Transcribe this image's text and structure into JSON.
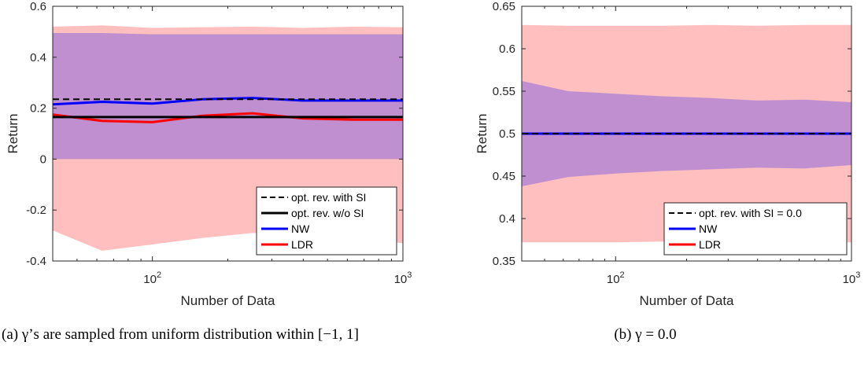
{
  "colors": {
    "outer_band": "#ffbfbf",
    "inner_band": "#bf8fcf",
    "nw": "#0000ff",
    "ldr": "#ff0000",
    "ref": "#000000",
    "axis": "#262626"
  },
  "chart_data": [
    {
      "type": "line",
      "xscale": "log",
      "xlim": [
        40,
        1000
      ],
      "ylim": [
        -0.4,
        0.6
      ],
      "yticks": [
        "-0.4",
        "-0.2",
        "0",
        "0.2",
        "0.4",
        "0.6"
      ],
      "ytick_values": [
        -0.4,
        -0.2,
        0,
        0.2,
        0.4,
        0.6
      ],
      "xtick_values": [
        100,
        1000
      ],
      "xtick_base": "10",
      "xtick_exponents": [
        "2",
        "3"
      ],
      "xlabel": "Number of Data",
      "ylabel": "Return",
      "grid": false,
      "legend_position": "bottom-right",
      "x": [
        40,
        63,
        100,
        158,
        251,
        398,
        631,
        1000
      ],
      "outer_band": {
        "upper": [
          0.52,
          0.525,
          0.515,
          0.518,
          0.52,
          0.515,
          0.52,
          0.518
        ],
        "lower": [
          -0.28,
          -0.36,
          -0.335,
          -0.31,
          -0.29,
          -0.3,
          -0.31,
          -0.33
        ]
      },
      "inner_band": {
        "upper": [
          0.495,
          0.495,
          0.49,
          0.49,
          0.49,
          0.49,
          0.49,
          0.49
        ],
        "lower": [
          0,
          0,
          0,
          0,
          0,
          0,
          0,
          0
        ]
      },
      "series": [
        {
          "name": "opt. rev. with SI",
          "style": "dashed",
          "color": "#000000",
          "values": [
            0.235,
            0.235,
            0.235,
            0.235,
            0.235,
            0.235,
            0.235,
            0.235
          ]
        },
        {
          "name": "opt. rev. w/o SI",
          "style": "solid",
          "color": "#000000",
          "values": [
            0.165,
            0.165,
            0.165,
            0.165,
            0.165,
            0.165,
            0.165,
            0.165
          ]
        },
        {
          "name": "NW",
          "style": "solid",
          "color": "#0000ff",
          "values": [
            0.215,
            0.225,
            0.218,
            0.235,
            0.24,
            0.23,
            0.23,
            0.23
          ]
        },
        {
          "name": "LDR",
          "style": "solid",
          "color": "#ff0000",
          "values": [
            0.175,
            0.15,
            0.145,
            0.17,
            0.18,
            0.16,
            0.155,
            0.155
          ]
        }
      ],
      "legend_entries": [
        {
          "label": "opt. rev. with SI",
          "style": "dashed",
          "color": "#000000"
        },
        {
          "label": "opt. rev. w/o SI",
          "style": "solid",
          "color": "#000000"
        },
        {
          "label": "NW",
          "style": "solid",
          "color": "#0000ff"
        },
        {
          "label": "LDR",
          "style": "solid",
          "color": "#ff0000"
        }
      ]
    },
    {
      "type": "line",
      "xscale": "log",
      "xlim": [
        40,
        1000
      ],
      "ylim": [
        0.35,
        0.65
      ],
      "yticks": [
        "0.35",
        "0.4",
        "0.45",
        "0.5",
        "0.55",
        "0.6",
        "0.65"
      ],
      "ytick_values": [
        0.35,
        0.4,
        0.45,
        0.5,
        0.55,
        0.6,
        0.65
      ],
      "xtick_values": [
        100,
        1000
      ],
      "xtick_base": "10",
      "xtick_exponents": [
        "2",
        "3"
      ],
      "xlabel": "Number of Data",
      "ylabel": "Return",
      "grid": false,
      "legend_position": "bottom-right",
      "x": [
        40,
        63,
        100,
        158,
        251,
        398,
        631,
        1000
      ],
      "outer_band": {
        "upper": [
          0.628,
          0.627,
          0.627,
          0.627,
          0.628,
          0.627,
          0.628,
          0.628
        ],
        "lower": [
          0.372,
          0.372,
          0.372,
          0.373,
          0.372,
          0.373,
          0.372,
          0.372
        ]
      },
      "inner_band": {
        "upper": [
          0.562,
          0.55,
          0.547,
          0.544,
          0.542,
          0.539,
          0.54,
          0.537
        ],
        "lower": [
          0.438,
          0.449,
          0.453,
          0.456,
          0.458,
          0.46,
          0.459,
          0.463
        ]
      },
      "series": [
        {
          "name": "opt. rev. with SI = 0.0",
          "style": "dashed",
          "color": "#000000",
          "values": [
            0.5,
            0.5,
            0.5,
            0.5,
            0.5,
            0.5,
            0.5,
            0.5
          ]
        },
        {
          "name": "NW",
          "style": "solid",
          "color": "#0000ff",
          "values": [
            0.5,
            0.5,
            0.5,
            0.5,
            0.5,
            0.5,
            0.5,
            0.5
          ]
        },
        {
          "name": "LDR",
          "style": "solid",
          "color": "#ff0000",
          "values": [
            0.5,
            0.5,
            0.5,
            0.5,
            0.5,
            0.5,
            0.5,
            0.5
          ]
        }
      ],
      "legend_entries": [
        {
          "label": "opt. rev. with SI = 0.0",
          "style": "dashed",
          "color": "#000000"
        },
        {
          "label": "NW",
          "style": "solid",
          "color": "#0000ff"
        },
        {
          "label": "LDR",
          "style": "solid",
          "color": "#ff0000"
        }
      ]
    }
  ],
  "captions": {
    "a": "(a) γ’s are sampled from uniform distribution within [−1, 1]",
    "b": "(b) γ = 0.0"
  }
}
